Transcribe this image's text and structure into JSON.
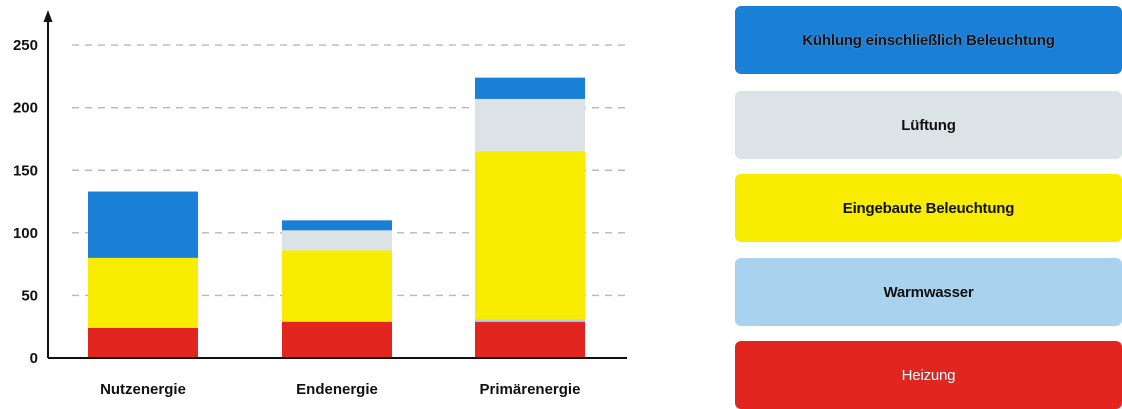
{
  "chart_data": {
    "type": "bar",
    "stacked": true,
    "categories": [
      "Nutzenergie",
      "Endenergie",
      "Primärenergie"
    ],
    "ylim": [
      0,
      270
    ],
    "yticks": [
      0,
      50,
      100,
      150,
      200,
      250
    ],
    "grid": true,
    "series": [
      {
        "name": "Heizung",
        "color": "#e3251f",
        "values": [
          24,
          29,
          29
        ]
      },
      {
        "name": "Warmwasser",
        "color": "#a9d2ef",
        "values": [
          0,
          0,
          2
        ]
      },
      {
        "name": "Eingebaute Beleuchtung",
        "color": "#f8ec00",
        "values": [
          56,
          57,
          134
        ]
      },
      {
        "name": "Lüftung",
        "color": "#dce3e6",
        "values": [
          0,
          16,
          42
        ]
      },
      {
        "name": "Kühlung einschließlich Beleuchtung",
        "color": "#1a7fd6",
        "values": [
          53,
          8,
          17
        ]
      }
    ]
  },
  "legend": {
    "items": [
      {
        "label": "Kühlung einschließlich Beleuchtung",
        "color": "#1a7fd6"
      },
      {
        "label": "Lüftung",
        "color": "#dce3e6"
      },
      {
        "label": "Eingebaute Beleuchtung",
        "color": "#f8ec00"
      },
      {
        "label": "Warmwasser",
        "color": "#a9d2ef"
      },
      {
        "label": "Heizung",
        "color": "#e3251f"
      }
    ]
  }
}
